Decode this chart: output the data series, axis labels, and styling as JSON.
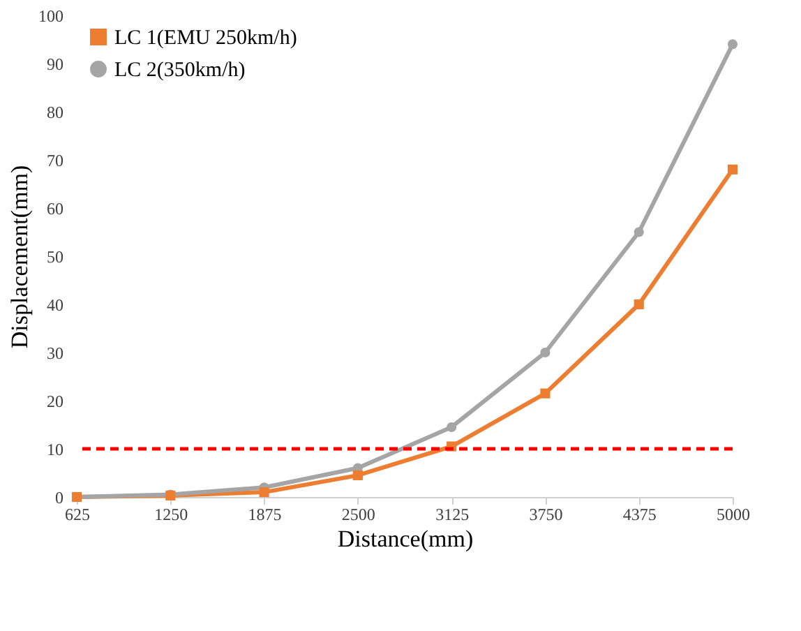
{
  "chart_data": {
    "type": "line",
    "xlabel": "Distance(mm)",
    "ylabel": "Displacement(mm)",
    "x": [
      625,
      1250,
      1875,
      2500,
      3125,
      3750,
      4375,
      5000
    ],
    "series": [
      {
        "name": "LC 1(EMU 250km/h)",
        "color": "#ed7d31",
        "marker": "square",
        "values": [
          0,
          0.3,
          1,
          4.5,
          10.5,
          21.5,
          40,
          68
        ]
      },
      {
        "name": "LC 2(350km/h)",
        "color": "#a5a5a5",
        "marker": "circle",
        "values": [
          0,
          0.5,
          2,
          6,
          14.5,
          30,
          55,
          94
        ]
      }
    ],
    "xlim": [
      625,
      5000
    ],
    "xticks": [
      625,
      1250,
      1875,
      2500,
      3125,
      3750,
      4375,
      5000
    ],
    "ylim": [
      0,
      100
    ],
    "yticks": [
      0,
      10,
      20,
      30,
      40,
      50,
      60,
      70,
      80,
      90,
      100
    ],
    "ref_lines": [
      {
        "axis": "y",
        "value": 10,
        "color": "#ff0000",
        "line_style": "dashed"
      }
    ],
    "grid": false,
    "legend": "top left",
    "line_style": "solid"
  }
}
